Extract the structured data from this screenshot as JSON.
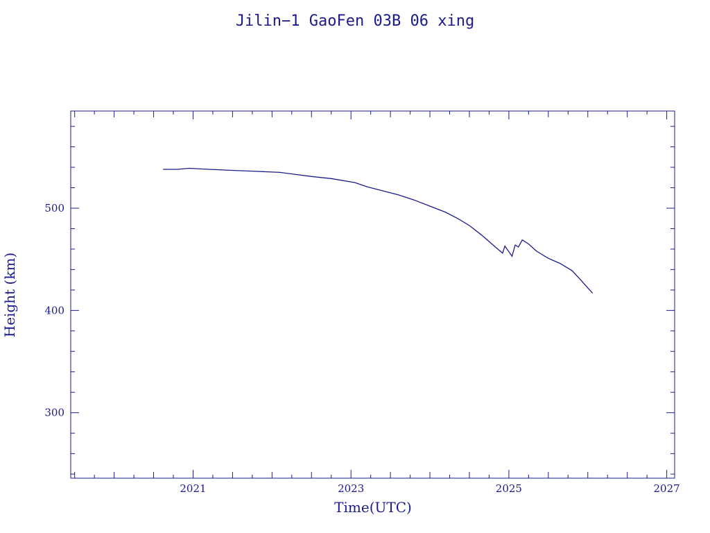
{
  "colors": {
    "axis": "#1a1a8c",
    "series": "#1a1a8c",
    "background": "#ffffff"
  },
  "chart_data": {
    "type": "line",
    "title": "Jilin−1 GaoFen 03B 06 xing",
    "xlabel": "Time(UTC)",
    "ylabel": "Height (km)",
    "xlim": [
      2019.45,
      2027.1
    ],
    "ylim": [
      236,
      595
    ],
    "xticks": [
      2021,
      2023,
      2025,
      2027
    ],
    "xtick_labels": [
      "2021",
      "2023",
      "2025",
      "2027"
    ],
    "yticks": [
      300,
      400,
      500
    ],
    "ytick_labels": [
      "300",
      "400",
      "500"
    ],
    "grid": false,
    "legend": "none",
    "series": [
      {
        "x": [
          2020.62,
          2020.8,
          2020.95,
          2021.2,
          2021.5,
          2021.8,
          2022.1,
          2022.3,
          2022.5,
          2022.75,
          2022.9,
          2023.05,
          2023.2,
          2023.4,
          2023.6,
          2023.8,
          2024.0,
          2024.2,
          2024.35,
          2024.5,
          2024.65,
          2024.8,
          2024.92,
          2024.95,
          2025.04,
          2025.08,
          2025.12,
          2025.17,
          2025.25,
          2025.35,
          2025.5,
          2025.65,
          2025.8,
          2025.92,
          2026.0,
          2026.06
        ],
        "y": [
          538,
          538,
          539,
          538,
          537,
          536,
          535,
          533,
          531,
          529,
          527,
          525,
          521,
          517,
          513,
          508,
          502,
          496,
          490,
          483,
          474,
          464,
          456,
          463,
          453,
          464,
          462,
          469,
          465,
          458,
          451,
          446,
          439,
          429,
          422,
          417
        ]
      }
    ]
  }
}
